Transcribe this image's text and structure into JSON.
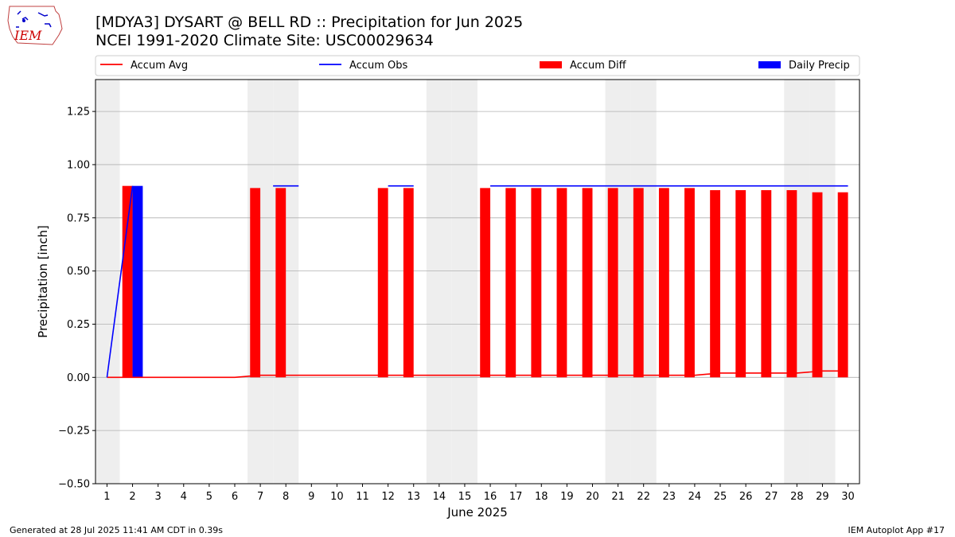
{
  "header": {
    "title_line1": "[MDYA3] DYSART @ BELL RD :: Precipitation for Jun 2025",
    "title_line2": "NCEI 1991-2020 Climate Site: USC00029634",
    "logo_text": "IEM"
  },
  "footer": {
    "left": "Generated at 28 Jul 2025 11:41 AM CDT in 0.39s",
    "right": "IEM Autoplot App #17"
  },
  "colors": {
    "accum_avg": "#ff0000",
    "accum_obs": "#0000ff",
    "accum_diff": "#ff0000",
    "daily_precip": "#0000ff",
    "weekend_shade": "#eeeeee",
    "grid": "#b0b0b0"
  },
  "chart_data": {
    "type": "bar",
    "xlabel": "June 2025",
    "ylabel": "Precipitation [inch]",
    "ylim": [
      -0.5,
      1.4
    ],
    "yticks": [
      -0.5,
      -0.25,
      0.0,
      0.25,
      0.5,
      0.75,
      1.0,
      1.25
    ],
    "ytick_labels": [
      "−0.50",
      "−0.25",
      "0.00",
      "0.25",
      "0.50",
      "0.75",
      "1.00",
      "1.25"
    ],
    "grid": "horizontal",
    "legend_position": "top",
    "x": [
      1,
      2,
      3,
      4,
      5,
      6,
      7,
      8,
      9,
      10,
      11,
      12,
      13,
      14,
      15,
      16,
      17,
      18,
      19,
      20,
      21,
      22,
      23,
      24,
      25,
      26,
      27,
      28,
      29,
      30
    ],
    "xtick_labels": [
      "1",
      "2",
      "3",
      "4",
      "5",
      "6",
      "7",
      "8",
      "9",
      "10",
      "11",
      "12",
      "13",
      "14",
      "15",
      "16",
      "17",
      "18",
      "19",
      "20",
      "21",
      "22",
      "23",
      "24",
      "25",
      "26",
      "27",
      "28",
      "29",
      "30"
    ],
    "weekend_days": [
      1,
      7,
      8,
      14,
      15,
      21,
      22,
      28,
      29
    ],
    "series": [
      {
        "name": "Accum Avg",
        "kind": "line",
        "values": [
          0.0,
          0.0,
          0.0,
          0.0,
          0.0,
          0.0,
          0.01,
          0.01,
          0.01,
          0.01,
          0.01,
          0.01,
          0.01,
          0.01,
          0.01,
          0.01,
          0.01,
          0.01,
          0.01,
          0.01,
          0.01,
          0.01,
          0.01,
          0.01,
          0.02,
          0.02,
          0.02,
          0.02,
          0.03,
          0.03
        ]
      },
      {
        "name": "Accum Obs",
        "kind": "line",
        "values": [
          0.0,
          0.9,
          null,
          null,
          null,
          null,
          null,
          0.9,
          null,
          null,
          null,
          0.9,
          0.9,
          null,
          null,
          0.9,
          0.9,
          0.9,
          0.9,
          0.9,
          0.9,
          0.9,
          0.9,
          0.9,
          0.9,
          0.9,
          0.9,
          0.9,
          0.9,
          0.9
        ]
      },
      {
        "name": "Accum Diff",
        "kind": "bar",
        "values": [
          null,
          0.9,
          null,
          null,
          null,
          null,
          0.89,
          0.89,
          null,
          null,
          null,
          0.89,
          0.89,
          null,
          null,
          0.89,
          0.89,
          0.89,
          0.89,
          0.89,
          0.89,
          0.89,
          0.89,
          0.89,
          0.88,
          0.88,
          0.88,
          0.88,
          0.87,
          0.87
        ]
      },
      {
        "name": "Daily Precip",
        "kind": "bar",
        "values": [
          0,
          0.9,
          0,
          0,
          0,
          0,
          0,
          0,
          0,
          0,
          0,
          0,
          0,
          0,
          0,
          0,
          0,
          0,
          0,
          0,
          0,
          0,
          0,
          0,
          0,
          0,
          0,
          0,
          0,
          0
        ]
      }
    ]
  }
}
